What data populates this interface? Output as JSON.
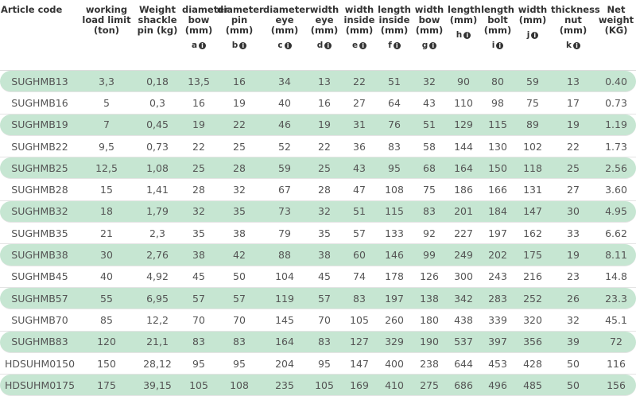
{
  "table": {
    "columns": [
      {
        "label": "Article code",
        "sub": null
      },
      {
        "label": "working load limit (ton)",
        "sub": null
      },
      {
        "label": "Weight shackle pin (kg)",
        "sub": null
      },
      {
        "label": "diameter bow (mm)",
        "sub": "a"
      },
      {
        "label": "diameter pin (mm)",
        "sub": "b"
      },
      {
        "label": "diameter eye (mm)",
        "sub": "c"
      },
      {
        "label": "width eye (mm)",
        "sub": "d"
      },
      {
        "label": "width inside (mm)",
        "sub": "e"
      },
      {
        "label": "length inside (mm)",
        "sub": "f"
      },
      {
        "label": "width bow (mm)",
        "sub": "g"
      },
      {
        "label": "length (mm)",
        "sub": "h"
      },
      {
        "label": "length bolt (mm)",
        "sub": "i"
      },
      {
        "label": "width (mm)",
        "sub": "j"
      },
      {
        "label": "thickness nut (mm)",
        "sub": "k"
      },
      {
        "label": "Net weight (KG)",
        "sub": null
      }
    ],
    "rows": [
      [
        "SUGHMB13",
        "3,3",
        "0,18",
        "13,5",
        "16",
        "34",
        "13",
        "22",
        "51",
        "32",
        "90",
        "80",
        "59",
        "13",
        "0.40"
      ],
      [
        "SUGHMB16",
        "5",
        "0,3",
        "16",
        "19",
        "40",
        "16",
        "27",
        "64",
        "43",
        "110",
        "98",
        "75",
        "17",
        "0.73"
      ],
      [
        "SUGHMB19",
        "7",
        "0,45",
        "19",
        "22",
        "46",
        "19",
        "31",
        "76",
        "51",
        "129",
        "115",
        "89",
        "19",
        "1.19"
      ],
      [
        "SUGHMB22",
        "9,5",
        "0,73",
        "22",
        "25",
        "52",
        "22",
        "36",
        "83",
        "58",
        "144",
        "130",
        "102",
        "22",
        "1.73"
      ],
      [
        "SUGHMB25",
        "12,5",
        "1,08",
        "25",
        "28",
        "59",
        "25",
        "43",
        "95",
        "68",
        "164",
        "150",
        "118",
        "25",
        "2.56"
      ],
      [
        "SUGHMB28",
        "15",
        "1,41",
        "28",
        "32",
        "67",
        "28",
        "47",
        "108",
        "75",
        "186",
        "166",
        "131",
        "27",
        "3.60"
      ],
      [
        "SUGHMB32",
        "18",
        "1,79",
        "32",
        "35",
        "73",
        "32",
        "51",
        "115",
        "83",
        "201",
        "184",
        "147",
        "30",
        "4.95"
      ],
      [
        "SUGHMB35",
        "21",
        "2,3",
        "35",
        "38",
        "79",
        "35",
        "57",
        "133",
        "92",
        "227",
        "197",
        "162",
        "33",
        "6.62"
      ],
      [
        "SUGHMB38",
        "30",
        "2,76",
        "38",
        "42",
        "88",
        "38",
        "60",
        "146",
        "99",
        "249",
        "202",
        "175",
        "19",
        "8.11"
      ],
      [
        "SUGHMB45",
        "40",
        "4,92",
        "45",
        "50",
        "104",
        "45",
        "74",
        "178",
        "126",
        "300",
        "243",
        "216",
        "23",
        "14.8"
      ],
      [
        "SUGHMB57",
        "55",
        "6,95",
        "57",
        "57",
        "119",
        "57",
        "83",
        "197",
        "138",
        "342",
        "283",
        "252",
        "26",
        "23.3"
      ],
      [
        "SUGHMB70",
        "85",
        "12,2",
        "70",
        "70",
        "145",
        "70",
        "105",
        "260",
        "180",
        "438",
        "339",
        "320",
        "32",
        "45.1"
      ],
      [
        "SUGHMB83",
        "120",
        "21,1",
        "83",
        "83",
        "164",
        "83",
        "127",
        "329",
        "190",
        "537",
        "397",
        "356",
        "39",
        "72"
      ],
      [
        "HDSUHM0150",
        "150",
        "28,12",
        "95",
        "95",
        "204",
        "95",
        "147",
        "400",
        "238",
        "644",
        "453",
        "428",
        "50",
        "116"
      ],
      [
        "HDSUHM0175",
        "175",
        "39,15",
        "105",
        "108",
        "235",
        "105",
        "169",
        "410",
        "275",
        "686",
        "496",
        "485",
        "50",
        "156"
      ]
    ]
  }
}
